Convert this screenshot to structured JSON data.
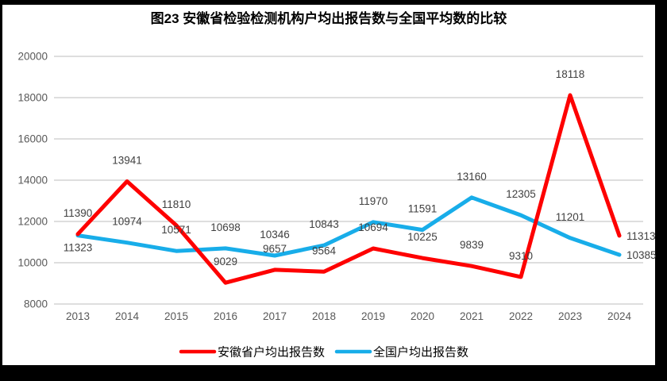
{
  "chart_data": {
    "type": "line",
    "title": "图23 安徽省检验检测机构户均出报告数与全国平均数的比较",
    "xlabel": "",
    "ylabel": "",
    "categories": [
      "2013",
      "2014",
      "2015",
      "2016",
      "2017",
      "2018",
      "2019",
      "2020",
      "2021",
      "2022",
      "2023",
      "2024"
    ],
    "series": [
      {
        "name": "安徽省户均出报告数",
        "color": "#FE0000",
        "values": [
          11390,
          13941,
          11810,
          9029,
          9657,
          9564,
          10694,
          10225,
          9839,
          9310,
          18118,
          11313
        ],
        "label_positions": [
          "above",
          "above",
          "above",
          "above",
          "above",
          "above",
          "above",
          "above",
          "above",
          "above",
          "above",
          "right"
        ]
      },
      {
        "name": "全国户均出报告数",
        "color": "#18ADE9",
        "values": [
          11323,
          10974,
          10571,
          10698,
          10346,
          10843,
          11970,
          11591,
          13160,
          12305,
          11201,
          10385
        ],
        "label_positions": [
          "below",
          "above",
          "above",
          "above",
          "above",
          "above",
          "above",
          "above",
          "above",
          "above",
          "above",
          "right"
        ]
      }
    ],
    "ylim": [
      8000,
      20000
    ],
    "yticks": [
      20000,
      18000,
      16000,
      14000,
      12000,
      10000,
      8000
    ],
    "grid": true,
    "legend_position": "bottom",
    "colors": {
      "anhui_line": "#FE0000",
      "national_line": "#18ADE9",
      "gridline": "#D9D9D9",
      "axis_text": "#595959",
      "data_label_text": "#404040",
      "legend_text": "#000000",
      "plot_background": "#FFFFFF",
      "frame": "#000000"
    }
  }
}
